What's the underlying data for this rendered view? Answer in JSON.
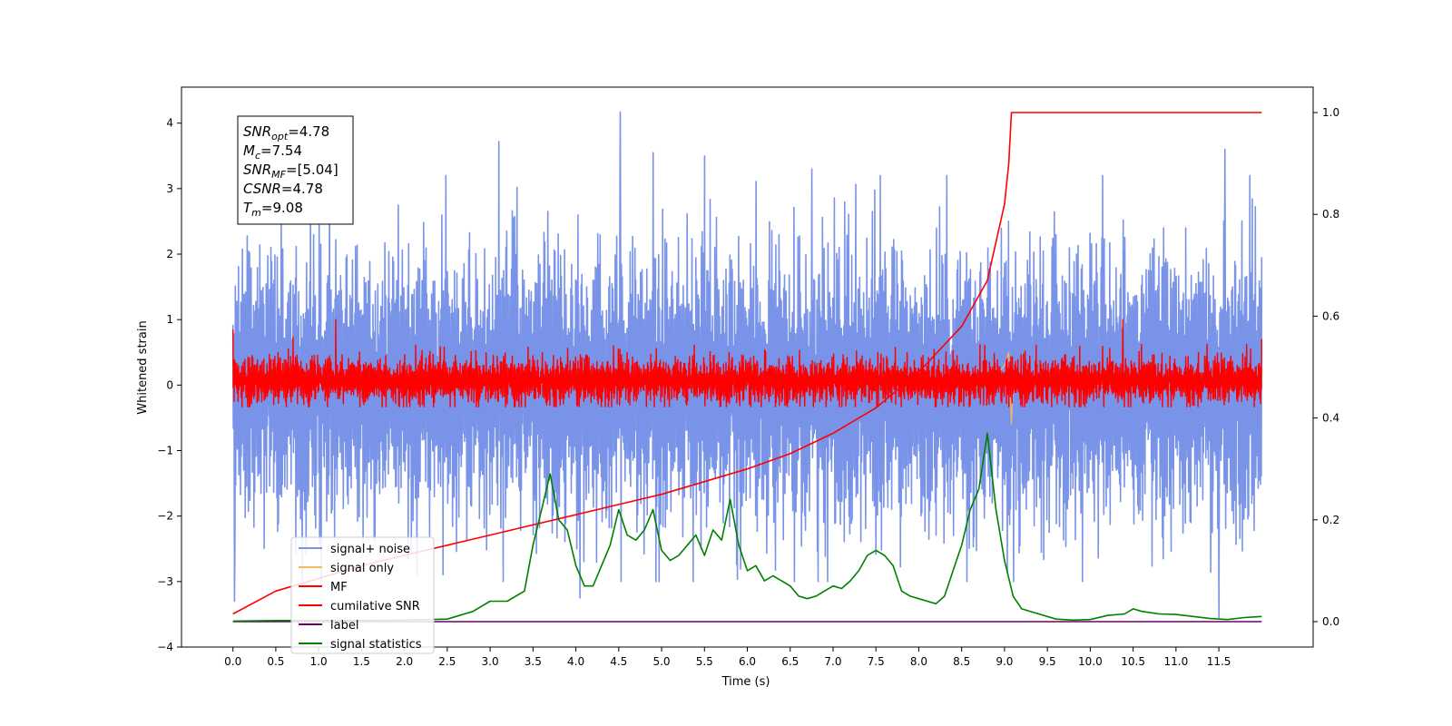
{
  "chart_data": {
    "type": "line",
    "xlabel": "Time (s)",
    "ylabel": "Whitened strain",
    "xlim": [
      -0.6,
      12.6
    ],
    "ylim": [
      -4.0,
      4.55
    ],
    "ylim_right": [
      -0.05,
      1.05
    ],
    "x_ticks": [
      0.0,
      0.5,
      1.0,
      1.5,
      2.0,
      2.5,
      3.0,
      3.5,
      4.0,
      4.5,
      5.0,
      5.5,
      6.0,
      6.5,
      7.0,
      7.5,
      8.0,
      8.5,
      9.0,
      9.5,
      10.0,
      10.5,
      11.0,
      11.5
    ],
    "x_tick_labels": [
      "0.0",
      "0.5",
      "1.0",
      "1.5",
      "2.0",
      "2.5",
      "3.0",
      "3.5",
      "4.0",
      "4.5",
      "5.0",
      "5.5",
      "6.0",
      "6.5",
      "7.0",
      "7.5",
      "8.0",
      "8.5",
      "9.0",
      "9.5",
      "10.0",
      "10.5",
      "11.0",
      "11.5"
    ],
    "y_ticks": [
      -4,
      -3,
      -2,
      -1,
      0,
      1,
      2,
      3,
      4
    ],
    "y_tick_labels": [
      "−4",
      "−3",
      "−2",
      "−1",
      "0",
      "1",
      "2",
      "3",
      "4"
    ],
    "y_right_ticks": [
      0.0,
      0.2,
      0.4,
      0.6,
      0.8,
      1.0
    ],
    "y_right_tick_labels": [
      "0.0",
      "0.2",
      "0.4",
      "0.6",
      "0.8",
      "1.0"
    ],
    "grid": false,
    "legend_position": "lower-left",
    "annotation": {
      "lines": [
        {
          "name": "SNR",
          "sub": "opt",
          "value": "=4.78"
        },
        {
          "name": "M",
          "sub": "c",
          "value": "=7.54"
        },
        {
          "name": "SNR",
          "sub": "MF",
          "value": "=[5.04]"
        },
        {
          "name": "CSNR",
          "sub": "",
          "value": "=4.78"
        },
        {
          "name": "T",
          "sub": "m",
          "value": "=9.08"
        }
      ]
    },
    "series": [
      {
        "name": "signal+ noise",
        "axis": "left",
        "color": "#7893e8",
        "x_range": [
          0.0,
          12.0
        ],
        "envelope_typical": [
          -1.5,
          1.5
        ],
        "extreme_spikes": [
          {
            "x": 0.02,
            "y": -3.3
          },
          {
            "x": 4.52,
            "y": 4.17
          },
          {
            "x": 3.1,
            "y": 3.72
          },
          {
            "x": 11.57,
            "y": 3.6
          },
          {
            "x": 11.5,
            "y": -3.55
          },
          {
            "x": 5.5,
            "y": 3.5
          },
          {
            "x": 4.05,
            "y": -3.25
          },
          {
            "x": 4.9,
            "y": 3.55
          },
          {
            "x": 6.75,
            "y": 3.3
          }
        ]
      },
      {
        "name": "signal only",
        "axis": "left",
        "color": "#f5b95c",
        "x": [
          0.0,
          8.5,
          8.9,
          9.0,
          9.05,
          9.08,
          9.1,
          12.0
        ],
        "y": [
          0.0,
          0.02,
          0.15,
          0.3,
          0.5,
          -0.6,
          0.0,
          0.0
        ]
      },
      {
        "name": "MF",
        "axis": "left",
        "color": "#ff0000",
        "x_range": [
          0.0,
          12.0
        ],
        "envelope_typical": [
          -0.3,
          0.5
        ],
        "start_value": 0.85,
        "spikes": [
          {
            "x": 1.2,
            "y": 1.0
          },
          {
            "x": 10.38,
            "y": 1.0
          },
          {
            "x": 0.7,
            "y": 0.73
          },
          {
            "x": 12.0,
            "y": 0.7
          }
        ]
      },
      {
        "name": "cumilative SNR",
        "axis": "right",
        "color": "#ff0000",
        "x": [
          0.0,
          0.5,
          1.0,
          1.5,
          2.0,
          2.5,
          3.0,
          3.5,
          4.0,
          4.5,
          5.0,
          5.5,
          6.0,
          6.5,
          7.0,
          7.5,
          8.0,
          8.5,
          8.8,
          9.0,
          9.05,
          9.08,
          12.0
        ],
        "y": [
          0.015,
          0.06,
          0.085,
          0.11,
          0.13,
          0.15,
          0.17,
          0.19,
          0.21,
          0.23,
          0.25,
          0.275,
          0.3,
          0.33,
          0.37,
          0.42,
          0.49,
          0.58,
          0.67,
          0.82,
          0.9,
          1.0,
          1.0
        ]
      },
      {
        "name": "label",
        "axis": "right",
        "color": "#6a006a",
        "x": [
          0.0,
          12.0
        ],
        "y": [
          0.0,
          0.0
        ]
      },
      {
        "name": "signal statistics",
        "axis": "right",
        "color": "#008000",
        "x": [
          0.0,
          0.5,
          1.0,
          1.5,
          2.0,
          2.5,
          2.8,
          3.0,
          3.2,
          3.4,
          3.5,
          3.6,
          3.7,
          3.8,
          3.9,
          4.0,
          4.1,
          4.2,
          4.3,
          4.4,
          4.5,
          4.6,
          4.7,
          4.8,
          4.9,
          5.0,
          5.1,
          5.2,
          5.3,
          5.4,
          5.5,
          5.6,
          5.7,
          5.8,
          5.9,
          6.0,
          6.1,
          6.2,
          6.3,
          6.4,
          6.5,
          6.6,
          6.7,
          6.8,
          6.9,
          7.0,
          7.1,
          7.2,
          7.3,
          7.4,
          7.5,
          7.6,
          7.7,
          7.8,
          7.9,
          8.0,
          8.1,
          8.2,
          8.3,
          8.4,
          8.5,
          8.6,
          8.7,
          8.8,
          8.9,
          9.0,
          9.1,
          9.2,
          9.4,
          9.6,
          9.8,
          10.0,
          10.2,
          10.4,
          10.5,
          10.6,
          10.8,
          11.0,
          11.2,
          11.4,
          11.6,
          11.8,
          12.0
        ],
        "y": [
          0.001,
          0.002,
          0.002,
          0.002,
          0.003,
          0.005,
          0.02,
          0.04,
          0.04,
          0.06,
          0.15,
          0.22,
          0.29,
          0.2,
          0.18,
          0.11,
          0.07,
          0.07,
          0.11,
          0.15,
          0.22,
          0.17,
          0.16,
          0.18,
          0.22,
          0.14,
          0.12,
          0.13,
          0.15,
          0.17,
          0.13,
          0.18,
          0.16,
          0.24,
          0.15,
          0.1,
          0.11,
          0.08,
          0.09,
          0.08,
          0.07,
          0.05,
          0.045,
          0.05,
          0.06,
          0.07,
          0.065,
          0.08,
          0.1,
          0.13,
          0.14,
          0.13,
          0.11,
          0.06,
          0.05,
          0.045,
          0.04,
          0.035,
          0.05,
          0.1,
          0.15,
          0.22,
          0.26,
          0.37,
          0.22,
          0.12,
          0.05,
          0.025,
          0.015,
          0.005,
          0.003,
          0.004,
          0.012,
          0.015,
          0.025,
          0.02,
          0.015,
          0.014,
          0.01,
          0.006,
          0.004,
          0.008,
          0.01
        ]
      }
    ]
  }
}
